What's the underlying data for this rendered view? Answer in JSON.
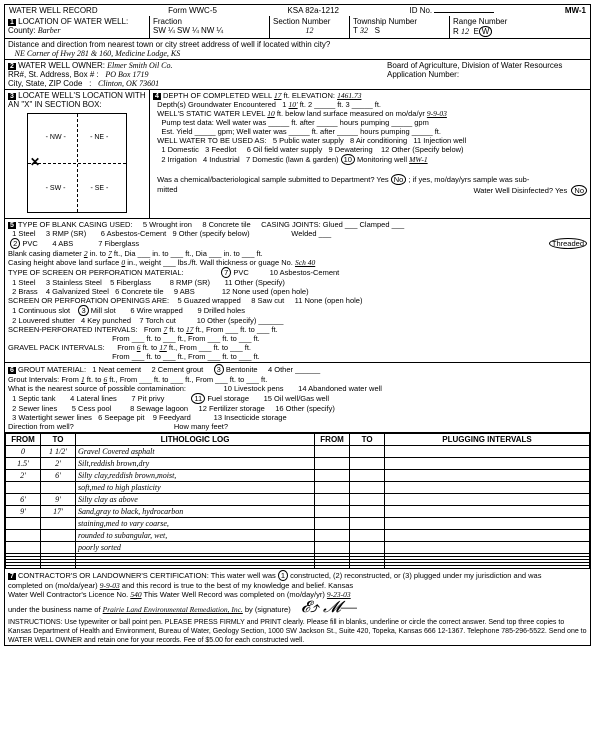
{
  "form": {
    "title": "WATER WELL RECORD",
    "formNo": "Form WWC-5",
    "ksa": "KSA 82a-1212",
    "idNo": "",
    "mw": "MW-1"
  },
  "loc": {
    "county": "Barber",
    "fraction": "SW ¼ SW ¼ NW ¼",
    "sectionNum": "12",
    "townshipNum": "32",
    "townshipDir": "S",
    "rangeNum": "12",
    "rangeDir": "E/W",
    "distance": "NE Corner of Hwy 281 & 160, Medicine Lodge, KS"
  },
  "owner": {
    "name": "Elmer Smith Oil Co.",
    "addr1": "PO Box 1719",
    "addr2": "Clinton, OK 73601",
    "board": "Board of Agriculture, Division of Water Resources",
    "appNo": "Application Number:"
  },
  "depth": {
    "completed": "17",
    "elevation": "1461.73",
    "gwEnc": "10'",
    "staticLevel": "10",
    "staticDate": "9-9-03",
    "useCircle": "10",
    "useLabel": "Monitoring well",
    "mwId": "MW-1",
    "bactNo": "No",
    "disinfNo": "No"
  },
  "casing": {
    "typeCircle": "2",
    "typeLabel": "PVC",
    "jointsCircle": "Threaded",
    "diameter": "2",
    "diameterTo": "7",
    "heightAbove": "0",
    "wallThick": "Sch 40",
    "screenType": "7",
    "screenLabel": "PVC",
    "openingsCircle": "3",
    "openingsLabel": "Mill slot",
    "perfFrom": "7",
    "perfTo": "17",
    "gravelFrom": "6",
    "gravelTo": "17"
  },
  "grout": {
    "matCircle": "3",
    "matLabel": "Bentonite",
    "intFrom": "1",
    "intTo": "6",
    "contamCircle": "11",
    "contamLabel": "Fuel storage"
  },
  "log": {
    "headers": [
      "FROM",
      "TO",
      "LITHOLOGIC LOG",
      "FROM",
      "TO",
      "PLUGGING INTERVALS"
    ],
    "rows": [
      [
        "0",
        "1 1/2'",
        "Gravel Covered asphalt",
        "",
        "",
        ""
      ],
      [
        "1.5'",
        "2'",
        "Silt,reddish brown,dry",
        "",
        "",
        ""
      ],
      [
        "2'",
        "6'",
        "Silty clay,reddish brown,moist,",
        "",
        "",
        ""
      ],
      [
        "",
        "",
        "soft,med to high plasticity",
        "",
        "",
        ""
      ],
      [
        "6'",
        "9'",
        "Silty clay as above",
        "",
        "",
        ""
      ],
      [
        "9'",
        "17'",
        "Sand,gray to black, hydrocarbon",
        "",
        "",
        ""
      ],
      [
        "",
        "",
        "staining,med to vary coarse,",
        "",
        "",
        ""
      ],
      [
        "",
        "",
        "rounded to subangular, wet,",
        "",
        "",
        ""
      ],
      [
        "",
        "",
        "poorly sorted",
        "",
        "",
        ""
      ],
      [
        "",
        "",
        "",
        "",
        "",
        ""
      ],
      [
        "",
        "",
        "",
        "",
        "",
        ""
      ],
      [
        "",
        "",
        "",
        "",
        "",
        ""
      ],
      [
        "",
        "",
        "",
        "",
        "",
        ""
      ],
      [
        "",
        "",
        "",
        "",
        "",
        ""
      ]
    ]
  },
  "cert": {
    "constructedCircle": "1",
    "date": "9-9-03",
    "license": "540",
    "completedDate": "9-23-03",
    "business": "Prairie Land Environmental Remediation, Inc.",
    "instructions": "INSTRUCTIONS: Use typewriter or ball point pen. PLEASE PRESS FIRMLY and PRINT clearly. Please fill in blanks, underline or circle the correct answer. Send top three copies to Kansas Department of Health and Environment, Bureau of Water, Geology Section, 1000 SW Jackson St., Suite 420, Topeka, Kansas 666 12-1367. Telephone 785-296-5522. Send one to WATER WELL OWNER and retain one for your records. Fee of $5.00 for each constructed well."
  }
}
